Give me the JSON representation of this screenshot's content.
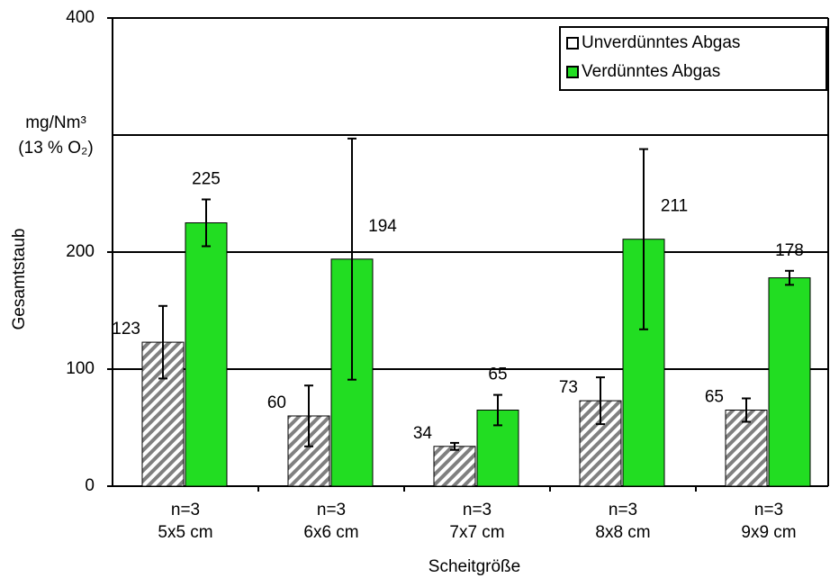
{
  "chart_data": {
    "type": "bar",
    "y_axis_label": "Gesamtstaub",
    "y_unit": [
      "mg/Nm³",
      "(13 % O₂)"
    ],
    "x_axis_label": "Scheitgröße",
    "categories": [
      [
        "n=3",
        "5x5 cm"
      ],
      [
        "n=3",
        "6x6 cm"
      ],
      [
        "n=3",
        "7x7 cm"
      ],
      [
        "n=3",
        "8x8 cm"
      ],
      [
        "n=3",
        "9x9 cm"
      ]
    ],
    "series": [
      {
        "name": "Unverdünntes Abgas",
        "color": "#808080",
        "hatch": true,
        "values": [
          123,
          60,
          34,
          73,
          65
        ],
        "errors": [
          31,
          26,
          3,
          20,
          10
        ]
      },
      {
        "name": "Verdünntes Abgas",
        "color": "#22dd22",
        "hatch": false,
        "values": [
          225,
          194,
          65,
          211,
          178
        ],
        "errors": [
          20,
          103,
          13,
          77,
          6
        ]
      }
    ],
    "ylim": [
      0,
      400
    ],
    "yticks": [
      0,
      100,
      200,
      400
    ],
    "grid_lines": [
      100,
      200,
      300,
      400
    ],
    "legend": "top-right"
  }
}
